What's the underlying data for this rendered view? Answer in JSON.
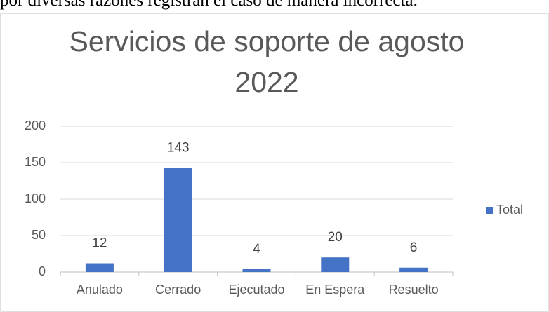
{
  "context_text": "por diversas razones registran el caso de manera incorrecta.",
  "chart_data": {
    "type": "bar",
    "title": "Servicios de soporte de agosto 2022",
    "categories": [
      "Anulado",
      "Cerrado",
      "Ejecutado",
      "En Espera",
      "Resuelto"
    ],
    "series": [
      {
        "name": "Total",
        "color": "#4472c4",
        "values": [
          12,
          143,
          4,
          20,
          6
        ]
      }
    ],
    "ylim": [
      0,
      200
    ],
    "yticks": [
      0,
      50,
      100,
      150,
      200
    ],
    "grid": true,
    "legend": "right"
  }
}
